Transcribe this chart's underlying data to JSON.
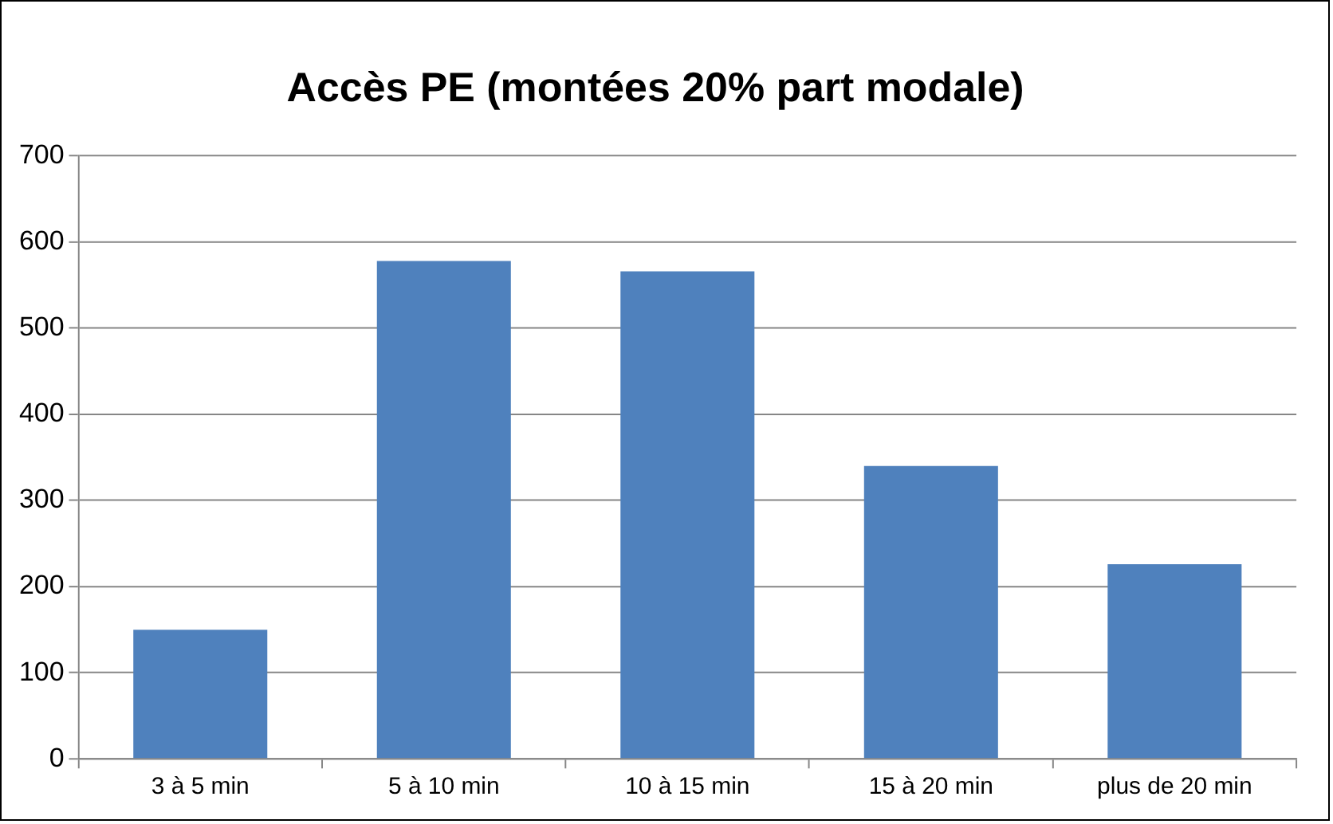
{
  "chart_data": {
    "type": "bar",
    "title": "Accès PE (montées 20% part modale)",
    "categories": [
      "3 à 5 min",
      "5 à 10 min",
      "10 à 15 min",
      "15 à 20 min",
      "plus de 20 min"
    ],
    "values": [
      150,
      578,
      566,
      340,
      226
    ],
    "color": "#4f81bd",
    "ylim": [
      0,
      700
    ],
    "yticks": [
      0,
      100,
      200,
      300,
      400,
      500,
      600,
      700
    ],
    "grid": "y",
    "legend": false
  }
}
